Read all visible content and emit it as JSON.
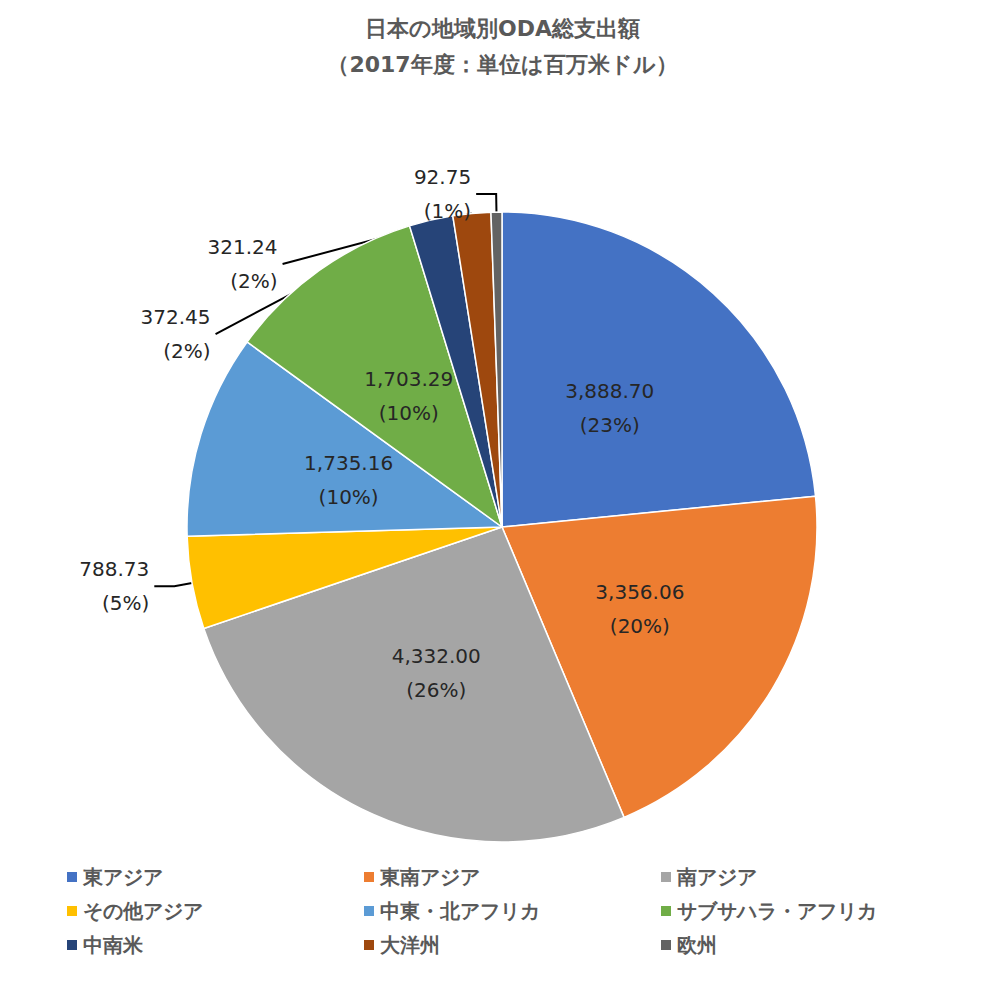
{
  "chart_data": {
    "type": "pie",
    "title": "日本の地域別ODA総支出額",
    "subtitle": "（2017年度：単位は百万米ドル）",
    "categories": [
      "東アジア",
      "東南アジア",
      "南アジア",
      "その他アジア",
      "中東・北アフリカ",
      "サブサハラ・アフリカ",
      "中南米",
      "大洋州",
      "欧州"
    ],
    "values": [
      3888.7,
      3356.06,
      4332.0,
      788.73,
      1735.16,
      1703.29,
      372.45,
      321.24,
      92.75
    ],
    "value_labels": [
      "3,888.70",
      "3,356.06",
      "4,332.00",
      "788.73",
      "1,735.16",
      "1,703.29",
      "372.45",
      "321.24",
      "92.75"
    ],
    "percents": [
      23,
      20,
      26,
      5,
      10,
      10,
      2,
      2,
      1
    ],
    "percent_labels": [
      "(23%)",
      "(20%)",
      "(26%)",
      "(5%)",
      "(10%)",
      "(10%)",
      "(2%)",
      "(2%)",
      "(1%)"
    ],
    "colors": [
      "#4472C4",
      "#ED7D31",
      "#A5A5A5",
      "#FFC000",
      "#5B9BD5",
      "#70AD47",
      "#264478",
      "#9E480E",
      "#636363"
    ],
    "data_labels": true,
    "legend": "bottom"
  }
}
